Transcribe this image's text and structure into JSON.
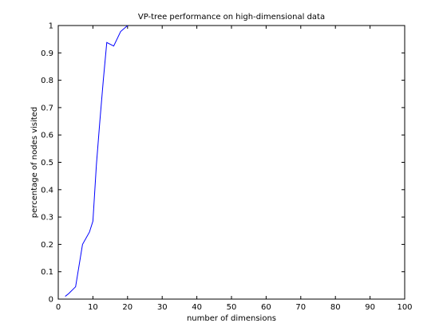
{
  "chart_data": {
    "type": "line",
    "title": "VP-tree performance on high-dimensional data",
    "xlabel": "number of dimensions",
    "ylabel": "percentage of nodes visited",
    "xlim": [
      0,
      100
    ],
    "ylim": [
      0,
      1
    ],
    "x_ticks": [
      0,
      10,
      20,
      30,
      40,
      50,
      60,
      70,
      80,
      90,
      100
    ],
    "y_ticks": [
      0,
      0.1,
      0.2,
      0.3,
      0.4,
      0.5,
      0.6,
      0.7,
      0.8,
      0.9,
      1
    ],
    "x_tick_labels": [
      "0",
      "10",
      "20",
      "30",
      "40",
      "50",
      "60",
      "70",
      "80",
      "90",
      "100"
    ],
    "y_tick_labels": [
      "0",
      "0.1",
      "0.2",
      "0.3",
      "0.4",
      "0.5",
      "0.6",
      "0.7",
      "0.8",
      "0.9",
      "1"
    ],
    "grid": false,
    "series": [
      {
        "color": "#0000ff",
        "x": [
          2,
          3,
          5,
          7,
          9,
          10,
          11,
          12,
          13,
          14,
          16,
          18,
          20
        ],
        "y": [
          0.01,
          0.02,
          0.045,
          0.2,
          0.245,
          0.285,
          0.49,
          0.65,
          0.8,
          0.938,
          0.925,
          0.978,
          1.0
        ]
      }
    ]
  }
}
